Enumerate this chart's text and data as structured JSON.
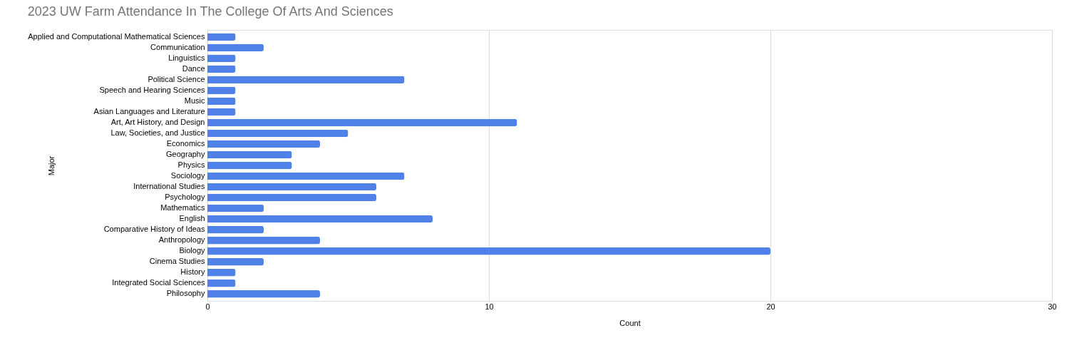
{
  "chart_data": {
    "type": "bar",
    "orientation": "horizontal",
    "title": "2023 UW Farm Attendance In The College Of Arts And Sciences",
    "xlabel": "Count",
    "ylabel": "Major",
    "categories": [
      "Applied and Computational Mathematical Sciences",
      "Communication",
      "Linguistics",
      "Dance",
      "Political Science",
      "Speech and Hearing Sciences",
      "Music",
      "Asian Languages and Literature",
      "Art, Art History, and Design",
      "Law, Societies, and Justice",
      "Economics",
      "Geography",
      "Physics",
      "Sociology",
      "International Studies",
      "Psychology",
      "Mathematics",
      "English",
      "Comparative History of Ideas",
      "Anthropology",
      "Biology",
      "Cinema Studies",
      "History",
      "Integrated Social Sciences",
      "Philosophy"
    ],
    "values": [
      1,
      2,
      1,
      1,
      7,
      1,
      1,
      1,
      11,
      5,
      4,
      3,
      3,
      7,
      6,
      6,
      2,
      8,
      2,
      4,
      20,
      2,
      1,
      1,
      4
    ],
    "color": "#4f81e8",
    "xlim": [
      0,
      30
    ],
    "xticks": [
      0,
      10,
      20,
      30
    ],
    "grid": "x"
  }
}
